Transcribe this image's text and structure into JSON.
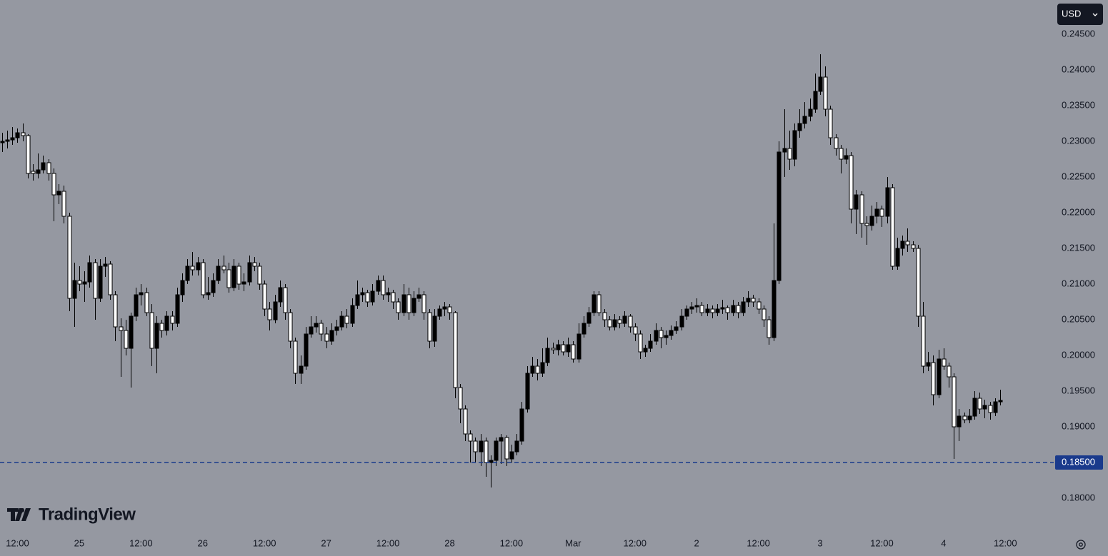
{
  "chart_data": {
    "type": "candlestick",
    "currency": "USD",
    "watermark": "TradingView",
    "grid": false,
    "up_color": "#000000",
    "down_color": "#ffffff",
    "wick_color": "#000000",
    "background": "#9598a1",
    "ylim": [
      0.1758,
      0.2498
    ],
    "yticks": [
      {
        "value": 0.245,
        "label": "0.24500"
      },
      {
        "value": 0.24,
        "label": "0.24000"
      },
      {
        "value": 0.235,
        "label": "0.23500"
      },
      {
        "value": 0.23,
        "label": "0.23000"
      },
      {
        "value": 0.225,
        "label": "0.22500"
      },
      {
        "value": 0.22,
        "label": "0.22000"
      },
      {
        "value": 0.215,
        "label": "0.21500"
      },
      {
        "value": 0.21,
        "label": "0.21000"
      },
      {
        "value": 0.205,
        "label": "0.20500"
      },
      {
        "value": 0.2,
        "label": "0.20000"
      },
      {
        "value": 0.195,
        "label": "0.19500"
      },
      {
        "value": 0.19,
        "label": "0.19000"
      },
      {
        "value": 0.185,
        "label": "0.18500"
      },
      {
        "value": 0.18,
        "label": "0.18000"
      }
    ],
    "xlim": [
      -0.4,
      204.4
    ],
    "xticks": [
      {
        "value": 3,
        "label": "12:00"
      },
      {
        "value": 15,
        "label": "25"
      },
      {
        "value": 27,
        "label": "12:00"
      },
      {
        "value": 39,
        "label": "26"
      },
      {
        "value": 51,
        "label": "12:00"
      },
      {
        "value": 63,
        "label": "27"
      },
      {
        "value": 75,
        "label": "12:00"
      },
      {
        "value": 87,
        "label": "28"
      },
      {
        "value": 99,
        "label": "12:00"
      },
      {
        "value": 111,
        "label": "Mar"
      },
      {
        "value": 123,
        "label": "12:00"
      },
      {
        "value": 135,
        "label": "2"
      },
      {
        "value": 147,
        "label": "12:00"
      },
      {
        "value": 159,
        "label": "3"
      },
      {
        "value": 171,
        "label": "12:00"
      },
      {
        "value": 183,
        "label": "4"
      },
      {
        "value": 195,
        "label": "12:00"
      }
    ],
    "hline": {
      "value": 0.185,
      "label": "0.18500",
      "color": "#1a3a8c"
    },
    "ohlc": [
      [
        0.2298,
        0.2312,
        0.2285,
        0.23
      ],
      [
        0.23,
        0.2315,
        0.229,
        0.2302
      ],
      [
        0.2302,
        0.232,
        0.2295,
        0.2305
      ],
      [
        0.2305,
        0.2318,
        0.2298,
        0.2312
      ],
      [
        0.2312,
        0.2325,
        0.23,
        0.2308
      ],
      [
        0.2308,
        0.231,
        0.2248,
        0.2255
      ],
      [
        0.2258,
        0.2268,
        0.2245,
        0.2255
      ],
      [
        0.2255,
        0.2283,
        0.2248,
        0.226
      ],
      [
        0.226,
        0.228,
        0.2255,
        0.227
      ],
      [
        0.227,
        0.2275,
        0.2245,
        0.2255
      ],
      [
        0.2255,
        0.2262,
        0.2188,
        0.2225
      ],
      [
        0.2225,
        0.224,
        0.2212,
        0.223
      ],
      [
        0.223,
        0.2238,
        0.2185,
        0.2195
      ],
      [
        0.2195,
        0.22,
        0.2062,
        0.208
      ],
      [
        0.208,
        0.213,
        0.204,
        0.2105
      ],
      [
        0.2105,
        0.2125,
        0.209,
        0.21
      ],
      [
        0.21,
        0.2118,
        0.2075,
        0.2103
      ],
      [
        0.2103,
        0.214,
        0.2095,
        0.213
      ],
      [
        0.213,
        0.2135,
        0.205,
        0.208
      ],
      [
        0.208,
        0.2135,
        0.2075,
        0.2125
      ],
      [
        0.2125,
        0.2138,
        0.211,
        0.2128
      ],
      [
        0.2128,
        0.2132,
        0.2078,
        0.2085
      ],
      [
        0.2085,
        0.209,
        0.202,
        0.204
      ],
      [
        0.204,
        0.2052,
        0.197,
        0.2035
      ],
      [
        0.2035,
        0.205,
        0.2,
        0.201
      ],
      [
        0.201,
        0.206,
        0.1955,
        0.2055
      ],
      [
        0.2055,
        0.2095,
        0.2048,
        0.2085
      ],
      [
        0.2085,
        0.21,
        0.207,
        0.2088
      ],
      [
        0.2088,
        0.2095,
        0.2055,
        0.206
      ],
      [
        0.206,
        0.2072,
        0.1985,
        0.201
      ],
      [
        0.201,
        0.2055,
        0.1975,
        0.2045
      ],
      [
        0.2045,
        0.205,
        0.2025,
        0.2035
      ],
      [
        0.2035,
        0.2062,
        0.2028,
        0.2055
      ],
      [
        0.2055,
        0.2062,
        0.2035,
        0.2045
      ],
      [
        0.2045,
        0.2095,
        0.204,
        0.2085
      ],
      [
        0.2085,
        0.2115,
        0.2075,
        0.2105
      ],
      [
        0.2105,
        0.2135,
        0.21,
        0.2125
      ],
      [
        0.2125,
        0.2145,
        0.2112,
        0.212
      ],
      [
        0.212,
        0.2138,
        0.2112,
        0.213
      ],
      [
        0.213,
        0.2135,
        0.208,
        0.2085
      ],
      [
        0.2085,
        0.211,
        0.2078,
        0.2088
      ],
      [
        0.2088,
        0.2115,
        0.2082,
        0.2105
      ],
      [
        0.2105,
        0.2135,
        0.21,
        0.2125
      ],
      [
        0.2125,
        0.214,
        0.2115,
        0.212
      ],
      [
        0.212,
        0.213,
        0.2088,
        0.2095
      ],
      [
        0.2095,
        0.2135,
        0.209,
        0.2125
      ],
      [
        0.2125,
        0.213,
        0.2092,
        0.21
      ],
      [
        0.21,
        0.2115,
        0.209,
        0.2103
      ],
      [
        0.2103,
        0.214,
        0.2098,
        0.213
      ],
      [
        0.213,
        0.2138,
        0.2118,
        0.2125
      ],
      [
        0.2125,
        0.213,
        0.2092,
        0.21
      ],
      [
        0.21,
        0.2105,
        0.2055,
        0.2065
      ],
      [
        0.2065,
        0.2075,
        0.2035,
        0.205
      ],
      [
        0.205,
        0.2085,
        0.2045,
        0.2075
      ],
      [
        0.2075,
        0.2105,
        0.2068,
        0.2095
      ],
      [
        0.2095,
        0.21,
        0.205,
        0.206
      ],
      [
        0.206,
        0.2065,
        0.201,
        0.202
      ],
      [
        0.202,
        0.2025,
        0.196,
        0.1975
      ],
      [
        0.1975,
        0.2,
        0.196,
        0.1985
      ],
      [
        0.1985,
        0.204,
        0.198,
        0.203
      ],
      [
        0.203,
        0.2055,
        0.2025,
        0.204
      ],
      [
        0.204,
        0.2055,
        0.2032,
        0.2045
      ],
      [
        0.2045,
        0.205,
        0.202,
        0.203
      ],
      [
        0.203,
        0.204,
        0.201,
        0.202
      ],
      [
        0.202,
        0.2045,
        0.2015,
        0.2035
      ],
      [
        0.2035,
        0.205,
        0.2028,
        0.204
      ],
      [
        0.204,
        0.2062,
        0.2035,
        0.2055
      ],
      [
        0.2055,
        0.2065,
        0.2038,
        0.2045
      ],
      [
        0.2045,
        0.208,
        0.204,
        0.207
      ],
      [
        0.207,
        0.2105,
        0.2065,
        0.2085
      ],
      [
        0.2085,
        0.2095,
        0.2075,
        0.2088
      ],
      [
        0.2088,
        0.2092,
        0.2068,
        0.2075
      ],
      [
        0.2075,
        0.21,
        0.207,
        0.209
      ],
      [
        0.209,
        0.2112,
        0.2085,
        0.2105
      ],
      [
        0.2105,
        0.2112,
        0.2078,
        0.2085
      ],
      [
        0.2085,
        0.2095,
        0.2075,
        0.2088
      ],
      [
        0.2088,
        0.2092,
        0.2065,
        0.2075
      ],
      [
        0.2075,
        0.208,
        0.205,
        0.206
      ],
      [
        0.206,
        0.21,
        0.2055,
        0.2085
      ],
      [
        0.2085,
        0.2095,
        0.205,
        0.206
      ],
      [
        0.206,
        0.209,
        0.2055,
        0.208
      ],
      [
        0.208,
        0.2095,
        0.2075,
        0.2085
      ],
      [
        0.2085,
        0.209,
        0.205,
        0.206
      ],
      [
        0.206,
        0.2065,
        0.201,
        0.202
      ],
      [
        0.202,
        0.2065,
        0.2012,
        0.2055
      ],
      [
        0.2055,
        0.207,
        0.205,
        0.2065
      ],
      [
        0.2065,
        0.2075,
        0.2055,
        0.2068
      ],
      [
        0.2068,
        0.2072,
        0.205,
        0.206
      ],
      [
        0.206,
        0.2062,
        0.194,
        0.1955
      ],
      [
        0.1955,
        0.196,
        0.1905,
        0.1925
      ],
      [
        0.1925,
        0.193,
        0.188,
        0.189
      ],
      [
        0.189,
        0.1895,
        0.185,
        0.188
      ],
      [
        0.188,
        0.1885,
        0.185,
        0.1865
      ],
      [
        0.1865,
        0.189,
        0.1845,
        0.188
      ],
      [
        0.188,
        0.1885,
        0.183,
        0.185
      ],
      [
        0.185,
        0.186,
        0.1815,
        0.1853
      ],
      [
        0.1853,
        0.1885,
        0.1845,
        0.188
      ],
      [
        0.188,
        0.189,
        0.1848,
        0.1885
      ],
      [
        0.1885,
        0.1888,
        0.1845,
        0.1855
      ],
      [
        0.1855,
        0.1875,
        0.185,
        0.1865
      ],
      [
        0.1865,
        0.189,
        0.186,
        0.188
      ],
      [
        0.188,
        0.1935,
        0.1875,
        0.1925
      ],
      [
        0.1925,
        0.1985,
        0.192,
        0.1975
      ],
      [
        0.1975,
        0.1998,
        0.197,
        0.1985
      ],
      [
        0.1985,
        0.1995,
        0.1965,
        0.1975
      ],
      [
        0.1975,
        0.201,
        0.197,
        0.199
      ],
      [
        0.199,
        0.2025,
        0.1985,
        0.201
      ],
      [
        0.201,
        0.2018,
        0.2002,
        0.2008
      ],
      [
        0.2008,
        0.2022,
        0.2,
        0.2015
      ],
      [
        0.2015,
        0.202,
        0.2,
        0.2005
      ],
      [
        0.2005,
        0.2025,
        0.1998,
        0.2015
      ],
      [
        0.2015,
        0.202,
        0.199,
        0.1995
      ],
      [
        0.1995,
        0.2045,
        0.199,
        0.203
      ],
      [
        0.203,
        0.2055,
        0.2025,
        0.2045
      ],
      [
        0.2045,
        0.2068,
        0.204,
        0.206
      ],
      [
        0.206,
        0.209,
        0.2055,
        0.2085
      ],
      [
        0.2085,
        0.209,
        0.2055,
        0.206
      ],
      [
        0.206,
        0.2065,
        0.204,
        0.205
      ],
      [
        0.205,
        0.2055,
        0.2035,
        0.204
      ],
      [
        0.204,
        0.2058,
        0.2035,
        0.205
      ],
      [
        0.205,
        0.2055,
        0.2038,
        0.2045
      ],
      [
        0.2045,
        0.2062,
        0.204,
        0.2055
      ],
      [
        0.2055,
        0.2058,
        0.2032,
        0.204
      ],
      [
        0.204,
        0.2045,
        0.202,
        0.203
      ],
      [
        0.203,
        0.2035,
        0.1995,
        0.2005
      ],
      [
        0.2005,
        0.2015,
        0.1998,
        0.201
      ],
      [
        0.201,
        0.203,
        0.2005,
        0.202
      ],
      [
        0.202,
        0.2045,
        0.2015,
        0.2035
      ],
      [
        0.2035,
        0.204,
        0.201,
        0.2025
      ],
      [
        0.2025,
        0.2035,
        0.2015,
        0.2028
      ],
      [
        0.2028,
        0.2042,
        0.2022,
        0.2035
      ],
      [
        0.2035,
        0.2048,
        0.203,
        0.204
      ],
      [
        0.204,
        0.2065,
        0.2035,
        0.2055
      ],
      [
        0.2055,
        0.207,
        0.205,
        0.2065
      ],
      [
        0.2065,
        0.2075,
        0.2058,
        0.2068
      ],
      [
        0.2068,
        0.208,
        0.206,
        0.207
      ],
      [
        0.207,
        0.2075,
        0.2055,
        0.206
      ],
      [
        0.206,
        0.2072,
        0.2055,
        0.2065
      ],
      [
        0.2065,
        0.207,
        0.2052,
        0.206
      ],
      [
        0.206,
        0.2072,
        0.2055,
        0.2065
      ],
      [
        0.2065,
        0.2078,
        0.2058,
        0.2067
      ],
      [
        0.2067,
        0.207,
        0.205,
        0.206
      ],
      [
        0.206,
        0.2078,
        0.2055,
        0.207
      ],
      [
        0.207,
        0.2075,
        0.2052,
        0.206
      ],
      [
        0.206,
        0.2082,
        0.2055,
        0.2075
      ],
      [
        0.2075,
        0.209,
        0.2068,
        0.208
      ],
      [
        0.208,
        0.2085,
        0.2068,
        0.2075
      ],
      [
        0.2075,
        0.208,
        0.2058,
        0.2065
      ],
      [
        0.2065,
        0.207,
        0.204,
        0.205
      ],
      [
        0.205,
        0.2055,
        0.2015,
        0.2025
      ],
      [
        0.2025,
        0.2185,
        0.202,
        0.2105
      ],
      [
        0.2105,
        0.23,
        0.21,
        0.2285
      ],
      [
        0.2285,
        0.2345,
        0.225,
        0.229
      ],
      [
        0.229,
        0.2315,
        0.226,
        0.2275
      ],
      [
        0.2275,
        0.2325,
        0.2265,
        0.2315
      ],
      [
        0.2315,
        0.2345,
        0.2305,
        0.2325
      ],
      [
        0.2325,
        0.2355,
        0.2318,
        0.2335
      ],
      [
        0.2335,
        0.236,
        0.2328,
        0.2345
      ],
      [
        0.2345,
        0.2395,
        0.234,
        0.237
      ],
      [
        0.237,
        0.2422,
        0.2365,
        0.239
      ],
      [
        0.239,
        0.2405,
        0.2335,
        0.2345
      ],
      [
        0.2345,
        0.235,
        0.2295,
        0.2305
      ],
      [
        0.2305,
        0.231,
        0.228,
        0.229
      ],
      [
        0.229,
        0.2295,
        0.2255,
        0.2275
      ],
      [
        0.2275,
        0.229,
        0.2268,
        0.228
      ],
      [
        0.228,
        0.2285,
        0.2185,
        0.2205
      ],
      [
        0.2205,
        0.2232,
        0.217,
        0.2225
      ],
      [
        0.2225,
        0.223,
        0.2165,
        0.2185
      ],
      [
        0.2185,
        0.2195,
        0.2155,
        0.2182
      ],
      [
        0.2182,
        0.221,
        0.2175,
        0.2195
      ],
      [
        0.2195,
        0.2215,
        0.2185,
        0.2205
      ],
      [
        0.2205,
        0.221,
        0.218,
        0.2195
      ],
      [
        0.2195,
        0.225,
        0.2185,
        0.2235
      ],
      [
        0.2235,
        0.224,
        0.212,
        0.2125
      ],
      [
        0.2125,
        0.2165,
        0.212,
        0.215
      ],
      [
        0.215,
        0.2168,
        0.214,
        0.216
      ],
      [
        0.216,
        0.2178,
        0.2145,
        0.2155
      ],
      [
        0.2155,
        0.216,
        0.2145,
        0.215
      ],
      [
        0.215,
        0.2155,
        0.204,
        0.2055
      ],
      [
        0.2055,
        0.2075,
        0.1975,
        0.1985
      ],
      [
        0.1985,
        0.2005,
        0.1978,
        0.199
      ],
      [
        0.199,
        0.2,
        0.193,
        0.1945
      ],
      [
        0.1945,
        0.2008,
        0.194,
        0.1995
      ],
      [
        0.1995,
        0.201,
        0.198,
        0.1985
      ],
      [
        0.1985,
        0.199,
        0.1955,
        0.197
      ],
      [
        0.197,
        0.1975,
        0.1855,
        0.19
      ],
      [
        0.19,
        0.1925,
        0.188,
        0.1915
      ],
      [
        0.1915,
        0.192,
        0.1905,
        0.191
      ],
      [
        0.191,
        0.1925,
        0.1905,
        0.1915
      ],
      [
        0.1915,
        0.195,
        0.191,
        0.194
      ],
      [
        0.194,
        0.1948,
        0.1918,
        0.1925
      ],
      [
        0.1925,
        0.1938,
        0.1912,
        0.193
      ],
      [
        0.193,
        0.1935,
        0.191,
        0.192
      ],
      [
        0.192,
        0.194,
        0.1915,
        0.1935
      ],
      [
        0.1935,
        0.1952,
        0.193,
        0.1937
      ]
    ]
  }
}
